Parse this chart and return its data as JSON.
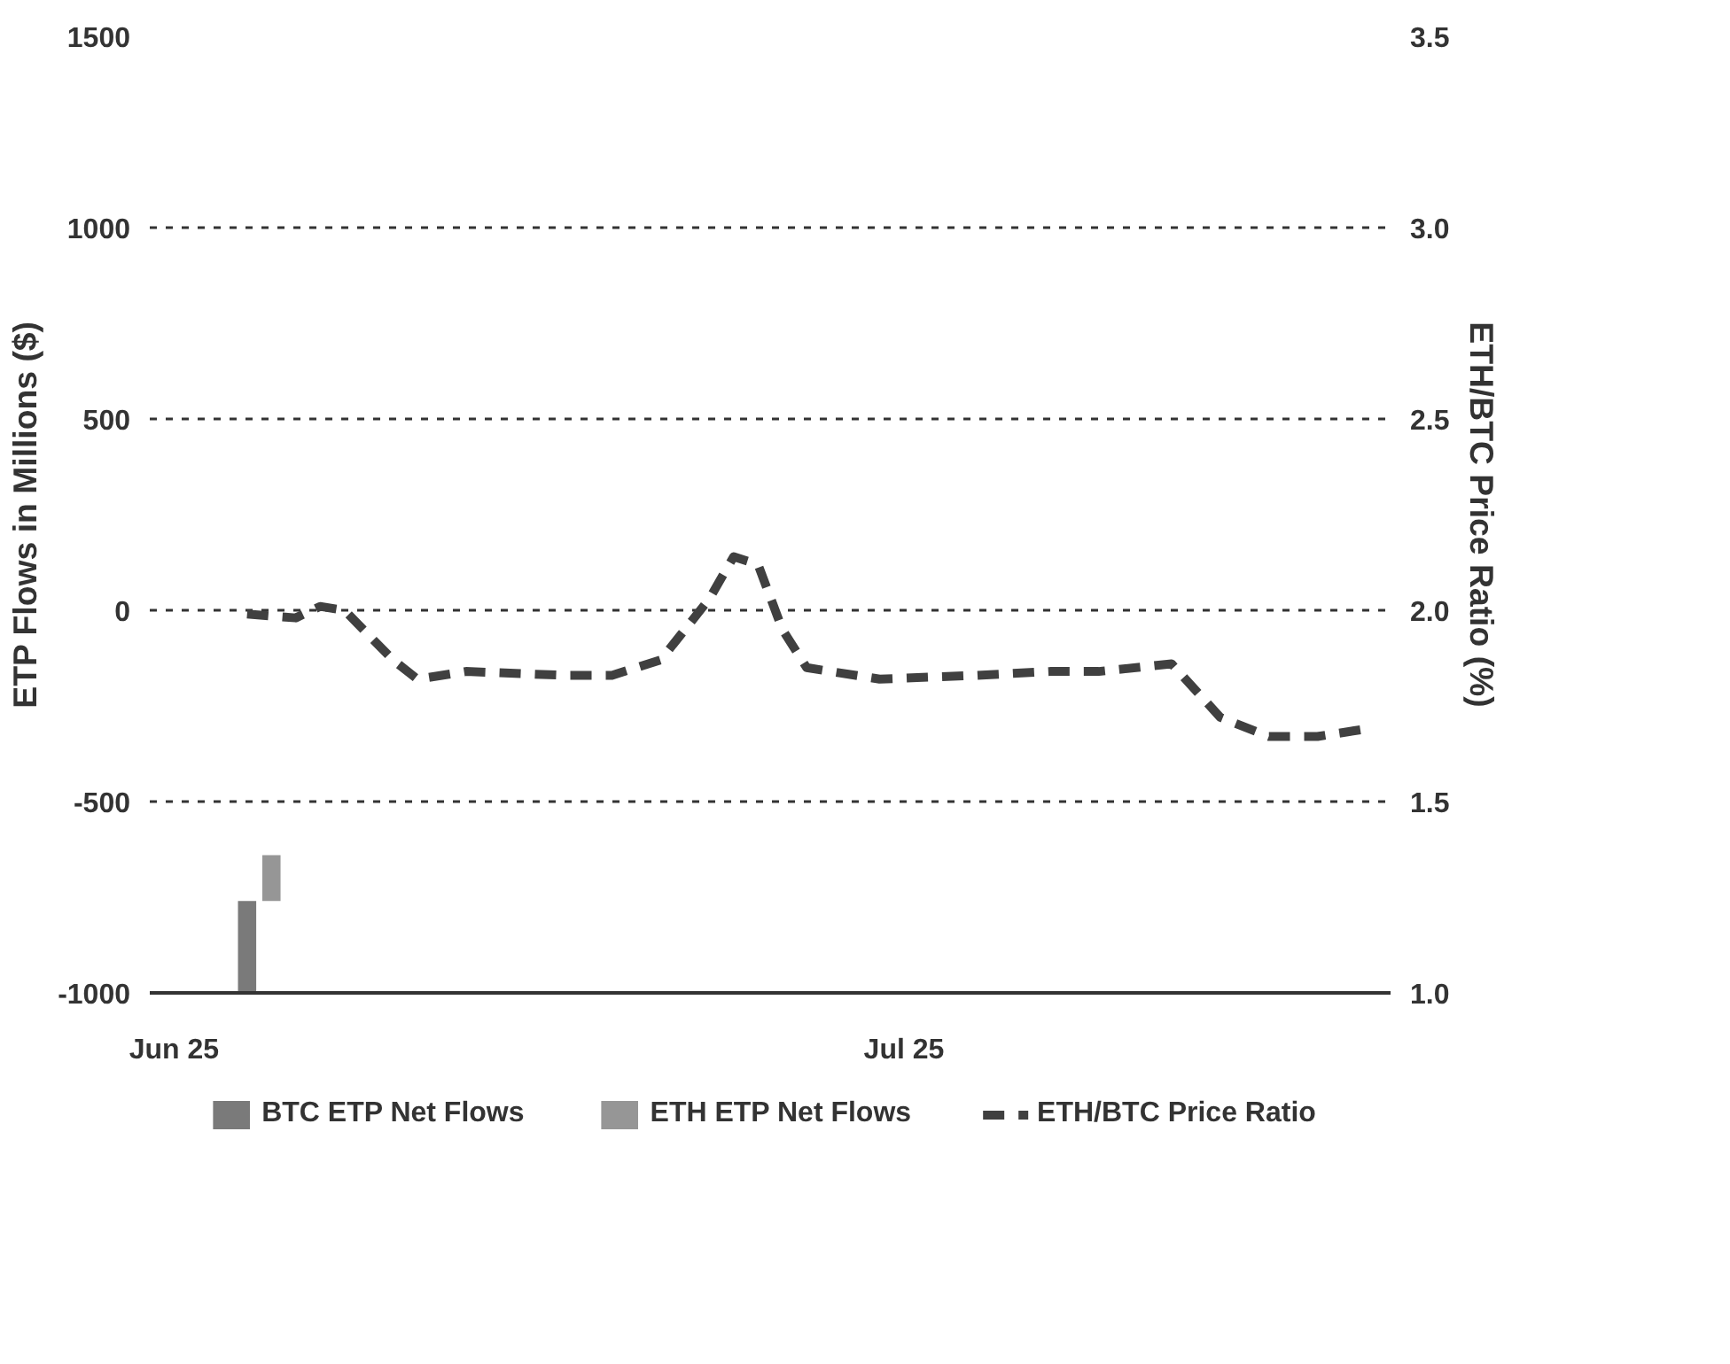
{
  "chart_data": {
    "type": "bar",
    "ylabel": "ETP Flows in Millions ($)",
    "y2label": "ETH/BTC Price Ratio (%)",
    "xlim": [
      "2025-05-31",
      "2025-07-21"
    ],
    "xticks": [
      {
        "value": "2025-06-01",
        "label": "Jun 25"
      },
      {
        "value": "2025-07-01",
        "label": "Jul 25"
      }
    ],
    "ylim": [
      -1000,
      1500
    ],
    "yticks": [
      -1000,
      -500,
      0,
      500,
      1000,
      1500
    ],
    "y2lim": [
      1.0,
      3.5
    ],
    "y2ticks": [
      {
        "value": 1.0,
        "label": "1.0"
      },
      {
        "value": 1.5,
        "label": "1.5"
      },
      {
        "value": 2.0,
        "label": "2.0"
      },
      {
        "value": 2.5,
        "label": "2.5"
      },
      {
        "value": 3.0,
        "label": "3.0"
      },
      {
        "value": 3.5,
        "label": "3.5"
      }
    ],
    "grid": "y",
    "legend": "bottom",
    "series": [
      {
        "name": "BTC ETP Net Flows",
        "type": "bar",
        "color": "#7a7a7a",
        "x": [
          "2025-06-04"
        ],
        "base": [
          -1000
        ],
        "values": [
          240
        ]
      },
      {
        "name": "ETH ETP Net Flows",
        "type": "bar",
        "color": "#969696",
        "x": [
          "2025-06-05"
        ],
        "base": [
          -760
        ],
        "values": [
          120
        ]
      },
      {
        "name": "ETH/BTC Price Ratio",
        "type": "line",
        "axis": "y2",
        "color": "#404040",
        "line_style": "dashed",
        "x": [
          "2025-06-04",
          "2025-06-06",
          "2025-06-07",
          "2025-06-08",
          "2025-06-10",
          "2025-06-11",
          "2025-06-13",
          "2025-06-17",
          "2025-06-19",
          "2025-06-21",
          "2025-06-23",
          "2025-06-24",
          "2025-06-25",
          "2025-06-26",
          "2025-06-27",
          "2025-06-30",
          "2025-07-04",
          "2025-07-07",
          "2025-07-09",
          "2025-07-12",
          "2025-07-14",
          "2025-07-16",
          "2025-07-18",
          "2025-07-20"
        ],
        "values": [
          1.99,
          1.98,
          2.01,
          2.0,
          1.87,
          1.82,
          1.84,
          1.83,
          1.83,
          1.87,
          2.03,
          2.14,
          2.12,
          1.95,
          1.85,
          1.82,
          1.83,
          1.84,
          1.84,
          1.86,
          1.72,
          1.67,
          1.67,
          1.69
        ]
      }
    ]
  }
}
